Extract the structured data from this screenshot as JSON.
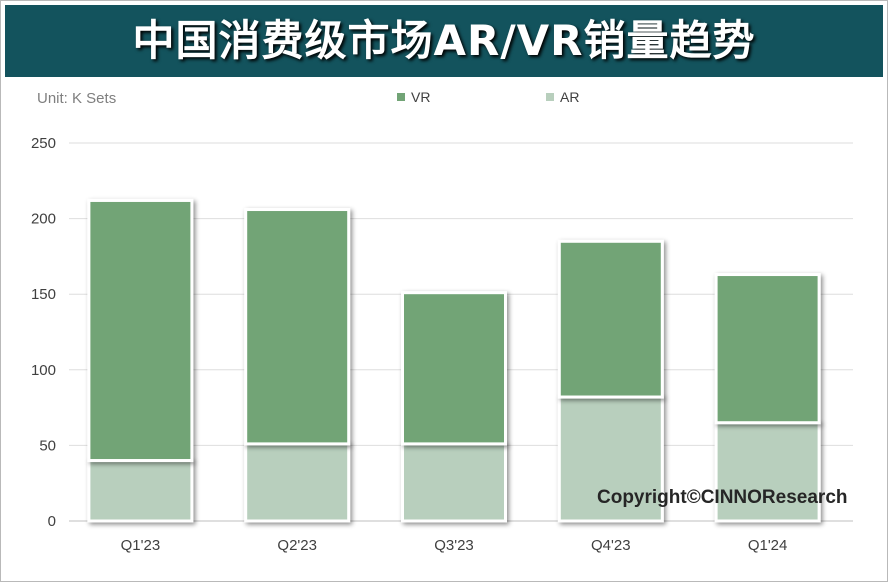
{
  "title": "中国消费级市场AR/VR销量趋势",
  "unit": "Unit:  K Sets",
  "copyright": "Copyright©CINNOResearch",
  "colors": {
    "header_bg": "#13535d",
    "vr": "#72a476",
    "ar": "#b8cfbd"
  },
  "chart_data": {
    "type": "bar",
    "stacked": true,
    "categories": [
      "Q1'23",
      "Q2'23",
      "Q3'23",
      "Q4'23",
      "Q1'24"
    ],
    "series": [
      {
        "name": "AR",
        "values": [
          40,
          51,
          51,
          82,
          65
        ]
      },
      {
        "name": "VR",
        "values": [
          172,
          155,
          100,
          103,
          98
        ]
      }
    ],
    "ylim": [
      0,
      250
    ],
    "yticks": [
      0,
      50,
      100,
      150,
      200,
      250
    ],
    "grid": true,
    "legend": "top",
    "legend_order": [
      "VR",
      "AR"
    ],
    "xlabel": "",
    "ylabel": ""
  }
}
